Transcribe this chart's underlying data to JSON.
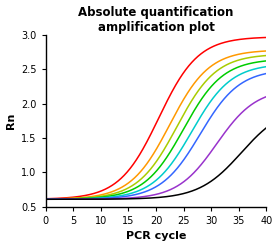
{
  "title": "Absolute quantification\namplification plot",
  "xlabel": "PCR cycle",
  "ylabel": "Rn",
  "xlim": [
    0,
    40
  ],
  "ylim": [
    0.5,
    3.0
  ],
  "xticks": [
    0,
    5,
    10,
    15,
    20,
    25,
    30,
    35,
    40
  ],
  "yticks": [
    0.5,
    1.0,
    1.5,
    2.0,
    2.5,
    3.0
  ],
  "background_color": "#ffffff",
  "curves": [
    {
      "color": "#ff0000",
      "midpoint": 20.5,
      "plateau": 2.97,
      "baseline": 0.61,
      "steepness": 0.28
    },
    {
      "color": "#ff9900",
      "midpoint": 22.5,
      "plateau": 2.78,
      "baseline": 0.61,
      "steepness": 0.28
    },
    {
      "color": "#aacc00",
      "midpoint": 23.8,
      "plateau": 2.72,
      "baseline": 0.61,
      "steepness": 0.28
    },
    {
      "color": "#00cc00",
      "midpoint": 25.0,
      "plateau": 2.65,
      "baseline": 0.61,
      "steepness": 0.28
    },
    {
      "color": "#00cccc",
      "midpoint": 26.5,
      "plateau": 2.58,
      "baseline": 0.61,
      "steepness": 0.28
    },
    {
      "color": "#3366ff",
      "midpoint": 28.0,
      "plateau": 2.5,
      "baseline": 0.61,
      "steepness": 0.28
    },
    {
      "color": "#9933cc",
      "midpoint": 31.0,
      "plateau": 2.22,
      "baseline": 0.61,
      "steepness": 0.28
    },
    {
      "color": "#000000",
      "midpoint": 35.5,
      "plateau": 1.97,
      "baseline": 0.61,
      "steepness": 0.26
    }
  ]
}
